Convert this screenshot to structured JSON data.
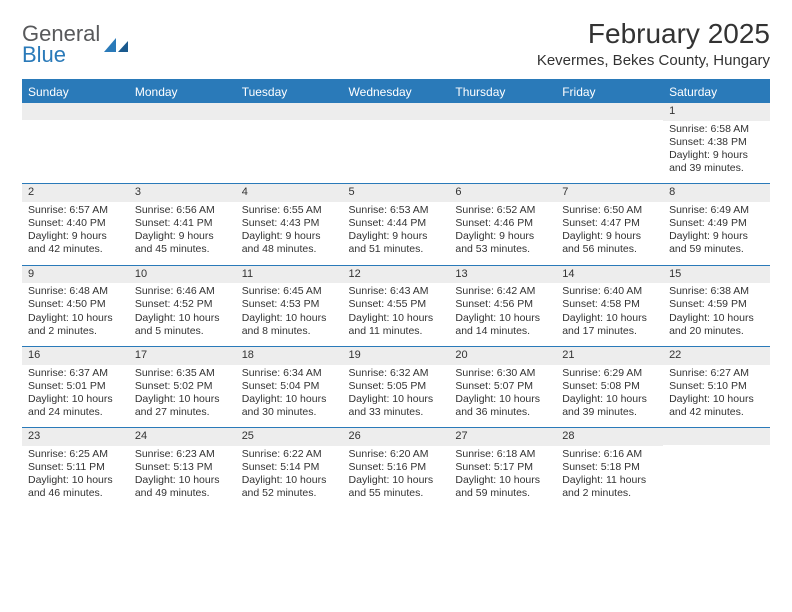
{
  "logo": {
    "word1": "General",
    "word2": "Blue"
  },
  "title": "February 2025",
  "location": "Kevermes, Bekes County, Hungary",
  "colors": {
    "accent": "#2a7ab9",
    "header_text": "#ffffff",
    "daynum_bg": "#ededed",
    "text": "#333333",
    "logo_gray": "#58595b"
  },
  "day_headers": [
    "Sunday",
    "Monday",
    "Tuesday",
    "Wednesday",
    "Thursday",
    "Friday",
    "Saturday"
  ],
  "weeks": [
    [
      {
        "n": "",
        "lines": []
      },
      {
        "n": "",
        "lines": []
      },
      {
        "n": "",
        "lines": []
      },
      {
        "n": "",
        "lines": []
      },
      {
        "n": "",
        "lines": []
      },
      {
        "n": "",
        "lines": []
      },
      {
        "n": "1",
        "lines": [
          "Sunrise: 6:58 AM",
          "Sunset: 4:38 PM",
          "Daylight: 9 hours",
          "and 39 minutes."
        ]
      }
    ],
    [
      {
        "n": "2",
        "lines": [
          "Sunrise: 6:57 AM",
          "Sunset: 4:40 PM",
          "Daylight: 9 hours",
          "and 42 minutes."
        ]
      },
      {
        "n": "3",
        "lines": [
          "Sunrise: 6:56 AM",
          "Sunset: 4:41 PM",
          "Daylight: 9 hours",
          "and 45 minutes."
        ]
      },
      {
        "n": "4",
        "lines": [
          "Sunrise: 6:55 AM",
          "Sunset: 4:43 PM",
          "Daylight: 9 hours",
          "and 48 minutes."
        ]
      },
      {
        "n": "5",
        "lines": [
          "Sunrise: 6:53 AM",
          "Sunset: 4:44 PM",
          "Daylight: 9 hours",
          "and 51 minutes."
        ]
      },
      {
        "n": "6",
        "lines": [
          "Sunrise: 6:52 AM",
          "Sunset: 4:46 PM",
          "Daylight: 9 hours",
          "and 53 minutes."
        ]
      },
      {
        "n": "7",
        "lines": [
          "Sunrise: 6:50 AM",
          "Sunset: 4:47 PM",
          "Daylight: 9 hours",
          "and 56 minutes."
        ]
      },
      {
        "n": "8",
        "lines": [
          "Sunrise: 6:49 AM",
          "Sunset: 4:49 PM",
          "Daylight: 9 hours",
          "and 59 minutes."
        ]
      }
    ],
    [
      {
        "n": "9",
        "lines": [
          "Sunrise: 6:48 AM",
          "Sunset: 4:50 PM",
          "Daylight: 10 hours",
          "and 2 minutes."
        ]
      },
      {
        "n": "10",
        "lines": [
          "Sunrise: 6:46 AM",
          "Sunset: 4:52 PM",
          "Daylight: 10 hours",
          "and 5 minutes."
        ]
      },
      {
        "n": "11",
        "lines": [
          "Sunrise: 6:45 AM",
          "Sunset: 4:53 PM",
          "Daylight: 10 hours",
          "and 8 minutes."
        ]
      },
      {
        "n": "12",
        "lines": [
          "Sunrise: 6:43 AM",
          "Sunset: 4:55 PM",
          "Daylight: 10 hours",
          "and 11 minutes."
        ]
      },
      {
        "n": "13",
        "lines": [
          "Sunrise: 6:42 AM",
          "Sunset: 4:56 PM",
          "Daylight: 10 hours",
          "and 14 minutes."
        ]
      },
      {
        "n": "14",
        "lines": [
          "Sunrise: 6:40 AM",
          "Sunset: 4:58 PM",
          "Daylight: 10 hours",
          "and 17 minutes."
        ]
      },
      {
        "n": "15",
        "lines": [
          "Sunrise: 6:38 AM",
          "Sunset: 4:59 PM",
          "Daylight: 10 hours",
          "and 20 minutes."
        ]
      }
    ],
    [
      {
        "n": "16",
        "lines": [
          "Sunrise: 6:37 AM",
          "Sunset: 5:01 PM",
          "Daylight: 10 hours",
          "and 24 minutes."
        ]
      },
      {
        "n": "17",
        "lines": [
          "Sunrise: 6:35 AM",
          "Sunset: 5:02 PM",
          "Daylight: 10 hours",
          "and 27 minutes."
        ]
      },
      {
        "n": "18",
        "lines": [
          "Sunrise: 6:34 AM",
          "Sunset: 5:04 PM",
          "Daylight: 10 hours",
          "and 30 minutes."
        ]
      },
      {
        "n": "19",
        "lines": [
          "Sunrise: 6:32 AM",
          "Sunset: 5:05 PM",
          "Daylight: 10 hours",
          "and 33 minutes."
        ]
      },
      {
        "n": "20",
        "lines": [
          "Sunrise: 6:30 AM",
          "Sunset: 5:07 PM",
          "Daylight: 10 hours",
          "and 36 minutes."
        ]
      },
      {
        "n": "21",
        "lines": [
          "Sunrise: 6:29 AM",
          "Sunset: 5:08 PM",
          "Daylight: 10 hours",
          "and 39 minutes."
        ]
      },
      {
        "n": "22",
        "lines": [
          "Sunrise: 6:27 AM",
          "Sunset: 5:10 PM",
          "Daylight: 10 hours",
          "and 42 minutes."
        ]
      }
    ],
    [
      {
        "n": "23",
        "lines": [
          "Sunrise: 6:25 AM",
          "Sunset: 5:11 PM",
          "Daylight: 10 hours",
          "and 46 minutes."
        ]
      },
      {
        "n": "24",
        "lines": [
          "Sunrise: 6:23 AM",
          "Sunset: 5:13 PM",
          "Daylight: 10 hours",
          "and 49 minutes."
        ]
      },
      {
        "n": "25",
        "lines": [
          "Sunrise: 6:22 AM",
          "Sunset: 5:14 PM",
          "Daylight: 10 hours",
          "and 52 minutes."
        ]
      },
      {
        "n": "26",
        "lines": [
          "Sunrise: 6:20 AM",
          "Sunset: 5:16 PM",
          "Daylight: 10 hours",
          "and 55 minutes."
        ]
      },
      {
        "n": "27",
        "lines": [
          "Sunrise: 6:18 AM",
          "Sunset: 5:17 PM",
          "Daylight: 10 hours",
          "and 59 minutes."
        ]
      },
      {
        "n": "28",
        "lines": [
          "Sunrise: 6:16 AM",
          "Sunset: 5:18 PM",
          "Daylight: 11 hours",
          "and 2 minutes."
        ]
      },
      {
        "n": "",
        "lines": []
      }
    ]
  ]
}
